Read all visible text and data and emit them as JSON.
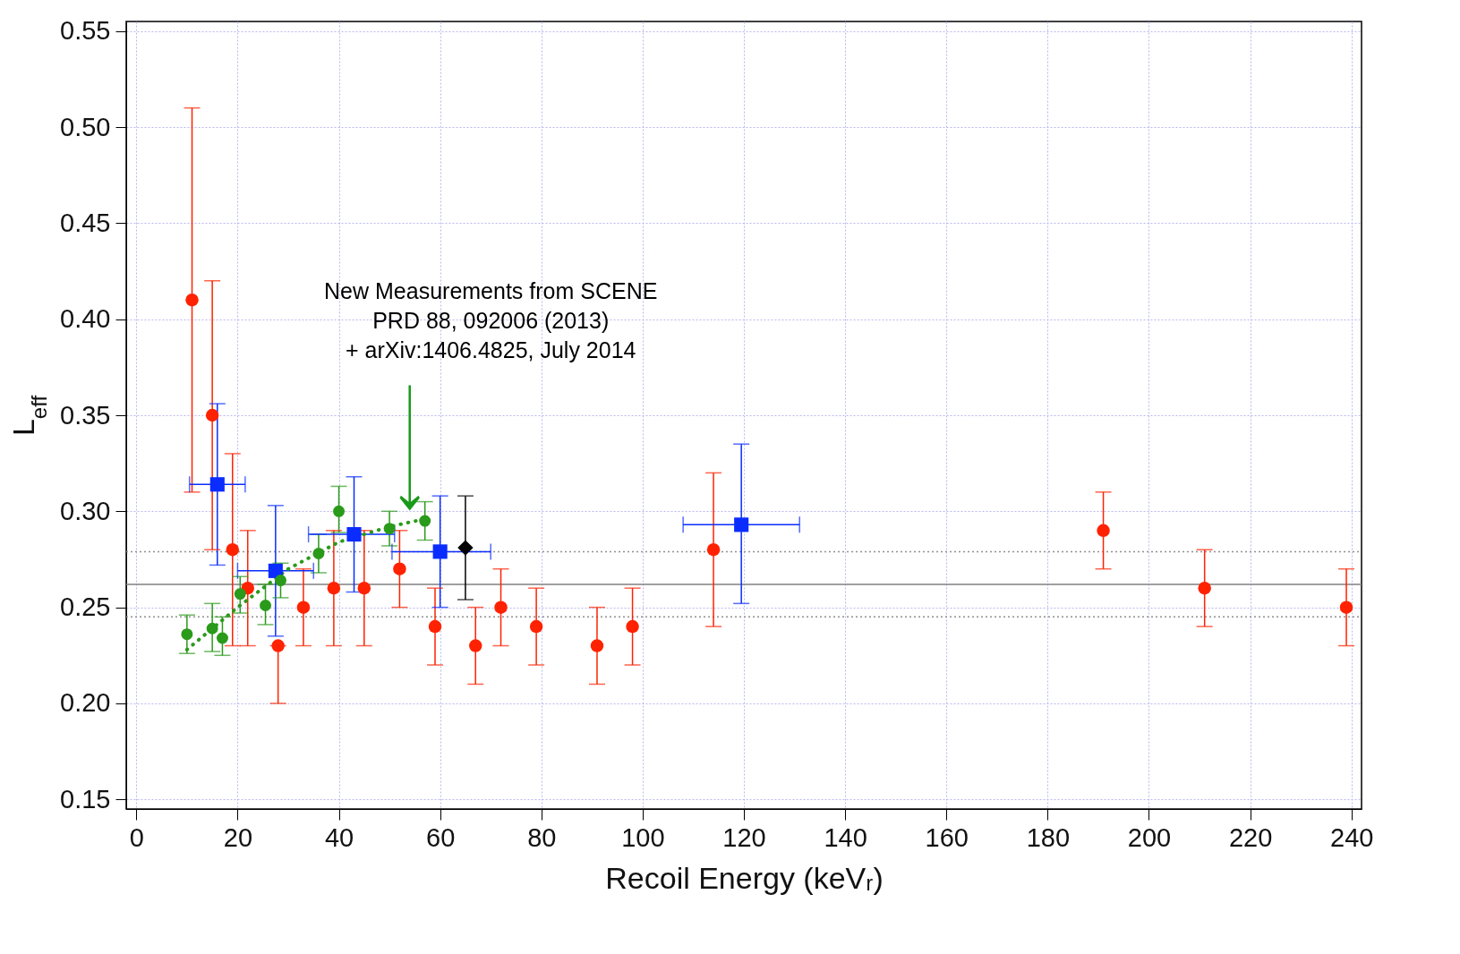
{
  "chart_data": {
    "type": "scatter",
    "xlabel": "Recoil Energy (keVᵣ)",
    "ylabel": "L$_{eff}$",
    "xlim": [
      -2,
      242
    ],
    "xticks": [
      0,
      20,
      40,
      60,
      80,
      100,
      120,
      140,
      160,
      180,
      200,
      220,
      240
    ],
    "ylim": [
      0.145,
      0.555
    ],
    "yticks": [
      0.15,
      {
        "value": 0.2,
        "label": "0.20"
      },
      0.25,
      {
        "value": 0.3,
        "label": "0.30"
      },
      0.35,
      {
        "value": 0.4,
        "label": "0.40"
      },
      0.45,
      {
        "value": 0.5,
        "label": "0.50"
      },
      0.55
    ],
    "grid": true,
    "series": [
      {
        "marker": "circle",
        "color": "#ff2200",
        "x": [
          11,
          15,
          19,
          22,
          28,
          33,
          39,
          45,
          52,
          59,
          67,
          72,
          79,
          91,
          98,
          114,
          191,
          211,
          239
        ],
        "values": [
          0.41,
          0.35,
          0.28,
          0.26,
          0.23,
          0.25,
          0.26,
          0.26,
          0.27,
          0.24,
          0.23,
          0.25,
          0.24,
          0.23,
          0.24,
          0.28,
          0.29,
          0.26,
          0.25
        ],
        "errors": [
          [
            0.31,
            0.51
          ],
          [
            0.28,
            0.42
          ],
          [
            0.23,
            0.33
          ],
          [
            0.23,
            0.29
          ],
          [
            0.2,
            0.23
          ],
          [
            0.23,
            0.27
          ],
          [
            0.23,
            0.29
          ],
          [
            0.23,
            0.29
          ],
          [
            0.25,
            0.29
          ],
          [
            0.22,
            0.26
          ],
          [
            0.21,
            0.25
          ],
          [
            0.23,
            0.27
          ],
          [
            0.22,
            0.26
          ],
          [
            0.21,
            0.25
          ],
          [
            0.22,
            0.26
          ],
          [
            0.24,
            0.32
          ],
          [
            0.27,
            0.31
          ],
          [
            0.24,
            0.28
          ],
          [
            0.23,
            0.27
          ]
        ]
      },
      {
        "marker": "square",
        "color": "#0a2cff",
        "x": [
          16,
          27.5,
          43,
          60,
          119.5
        ],
        "values": [
          0.314,
          0.269,
          0.288,
          0.279,
          0.293
        ],
        "errors": [
          [
            0.272,
            0.356
          ],
          [
            0.235,
            0.303
          ],
          [
            0.258,
            0.318
          ],
          [
            0.25,
            0.308
          ],
          [
            0.252,
            0.335
          ]
        ],
        "xerrors": [
          [
            10.5,
            21.5
          ],
          [
            20,
            35
          ],
          [
            34,
            51
          ],
          [
            50.5,
            70
          ],
          [
            108,
            131
          ]
        ]
      },
      {
        "marker": "diamond",
        "color": "#000000",
        "x": [
          65
        ],
        "values": [
          0.281
        ],
        "errors": [
          [
            0.254,
            0.308
          ]
        ]
      },
      {
        "marker": "circle",
        "color": "#2a9a1a",
        "x": [
          10,
          15,
          17,
          20.5,
          25.5,
          28.5,
          36,
          40,
          50,
          57
        ],
        "values": [
          0.236,
          0.239,
          0.234,
          0.257,
          0.251,
          0.264,
          0.278,
          0.3,
          0.291,
          0.295
        ],
        "errors": [
          [
            0.226,
            0.246
          ],
          [
            0.227,
            0.252
          ],
          [
            0.225,
            0.245
          ],
          [
            0.247,
            0.266
          ],
          [
            0.241,
            0.262
          ],
          [
            0.255,
            0.273
          ],
          [
            0.268,
            0.288
          ],
          [
            0.289,
            0.313
          ],
          [
            0.282,
            0.3
          ],
          [
            0.285,
            0.305
          ]
        ]
      },
      {
        "type": "line",
        "marker": "none",
        "line_style": "dotted",
        "color": "#2a9a1a",
        "x": [
          10,
          20,
          30,
          40,
          50,
          57
        ],
        "values": [
          0.228,
          0.25,
          0.27,
          0.284,
          0.292,
          0.296
        ]
      }
    ],
    "ref_lines": [
      {
        "axis": "y",
        "value": 0.262,
        "color": "#808080",
        "line_style": "solid"
      },
      {
        "axis": "y",
        "value": 0.279,
        "color": "#909090",
        "line_style": "dotted"
      },
      {
        "axis": "y",
        "value": 0.245,
        "color": "#909090",
        "line_style": "dotted"
      }
    ],
    "annotations": [
      "New Measurements from SCENE\nPRD 88, 092006 (2013)\n+ arXiv:1406.4825, July 2014"
    ]
  }
}
